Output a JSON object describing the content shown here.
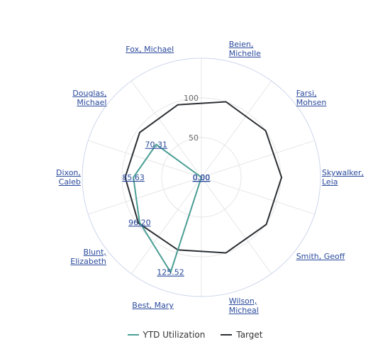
{
  "chart_data": {
    "type": "radar",
    "categories": [
      "Fox, Michael",
      "Beien,\nMichelle",
      "Farsi,\nMohsen",
      "Skywalker,\nLeia",
      "Smith, Geoff",
      "Wilson,\nMicheal",
      "Best, Mary",
      "Blunt,\nElizabeth",
      "Dixon,\nCaleb",
      "Douglas,\nMichael"
    ],
    "series": [
      {
        "name": "YTD Utilization",
        "color": "#4a9e94",
        "values": [
          0,
          0,
          0,
          0,
          0,
          0,
          125.52,
          96.2,
          85.63,
          70.31
        ],
        "value_labels": [
          "0.00",
          "0.00",
          "0.00",
          "0.00",
          "0.00",
          "0.00",
          "125.52",
          "96.20",
          "85.63",
          "70.31"
        ]
      },
      {
        "name": "Target",
        "color": "#2b2f33",
        "values": [
          96,
          100,
          100,
          101,
          101,
          100,
          96,
          98,
          96,
          96
        ]
      }
    ],
    "ylim": [
      0,
      150
    ],
    "yticks": [
      50,
      100
    ]
  }
}
